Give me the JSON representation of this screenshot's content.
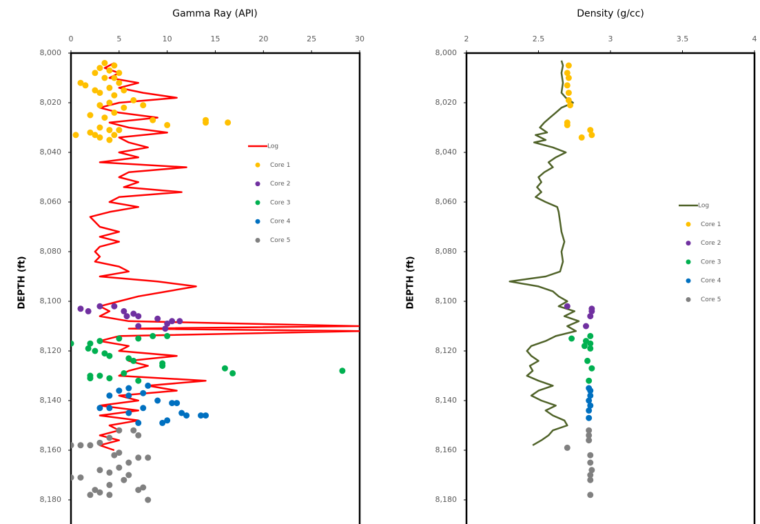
{
  "chart_data": [
    {
      "type": "scatter",
      "title": "Gamma Ray (API)",
      "y_label": "DEPTH (ft)",
      "inverted_y": true,
      "legend": "right",
      "xlim": [
        0,
        30
      ],
      "xticks": [
        0,
        5,
        10,
        15,
        20,
        25,
        30
      ],
      "ylim": [
        8000,
        8200
      ],
      "yticks": [
        {
          "value": 8000,
          "label": "8,000"
        },
        {
          "value": 8020,
          "label": "8,020"
        },
        {
          "value": 8040,
          "label": "8,040"
        },
        {
          "value": 8060,
          "label": "8,060"
        },
        {
          "value": 8080,
          "label": "8,080"
        },
        {
          "value": 8100,
          "label": "8,100"
        },
        {
          "value": 8120,
          "label": "8,120"
        },
        {
          "value": 8140,
          "label": "8,140"
        },
        {
          "value": 8160,
          "label": "8,160"
        },
        {
          "value": 8180,
          "label": "8,180"
        }
      ],
      "series": [
        {
          "name": "Log",
          "color": "#ff0000",
          "mode": "line",
          "x": [
            4.5,
            3.5,
            5,
            4,
            7,
            5,
            7.5,
            11,
            5,
            3,
            5,
            9,
            4,
            6,
            10,
            5,
            6,
            8,
            5,
            7,
            3,
            12,
            6,
            5,
            7,
            5.5,
            11.5,
            5,
            4,
            7,
            4,
            2,
            2.5,
            3,
            5,
            3,
            5,
            3,
            2.5,
            3,
            2.5,
            5,
            6,
            3,
            9,
            13,
            10,
            7,
            5,
            3,
            4,
            3,
            6,
            29.9,
            6,
            30,
            5,
            3,
            6,
            5,
            11,
            6,
            8,
            6,
            5,
            14,
            8,
            11,
            5,
            7,
            3,
            7,
            3,
            7,
            4,
            5,
            3,
            5,
            3,
            4.5
          ],
          "y": [
            8004,
            8006,
            8008,
            8010,
            8012,
            8014,
            8016,
            8018,
            8020,
            8022,
            8024,
            8026,
            8028,
            8030,
            8032,
            8034,
            8036,
            8038,
            8040,
            8042,
            8044,
            8046,
            8048,
            8050,
            8052,
            8054,
            8056,
            8058,
            8060,
            8062,
            8064,
            8066,
            8068,
            8070,
            8072,
            8074,
            8076,
            8078,
            8080,
            8082,
            8084,
            8086,
            8088,
            8090,
            8092,
            8094,
            8096,
            8098,
            8100,
            8102,
            8104,
            8106,
            8108,
            8110,
            8111,
            8112,
            8114,
            8116,
            8118,
            8120,
            8122,
            8124,
            8126,
            8128,
            8130,
            8132,
            8134,
            8136,
            8138,
            8140,
            8142,
            8144,
            8146,
            8148,
            8150,
            8152,
            8154,
            8156,
            8158,
            8160
          ]
        },
        {
          "name": "Core 1",
          "color": "#ffc000",
          "mode": "markers",
          "x": [
            3.5,
            4.5,
            3,
            4,
            2.5,
            5,
            3.5,
            4.5,
            1,
            1.5,
            5,
            4,
            2.5,
            5.5,
            3,
            4.5,
            6.5,
            4,
            7.5,
            3,
            5.5,
            2,
            4.5,
            3.5,
            8.5,
            14,
            16.3,
            14,
            10,
            3,
            4,
            2,
            5,
            0.5,
            3,
            4.5,
            2.5,
            4
          ],
          "y": [
            8004,
            8005,
            8006,
            8007,
            8008,
            8008,
            8010,
            8010,
            8012,
            8013,
            8012,
            8014,
            8015,
            8015,
            8016,
            8017,
            8019,
            8020,
            8021,
            8021,
            8022,
            8025,
            8024,
            8026,
            8027,
            8027,
            8028,
            8028,
            8029,
            8030,
            8031,
            8032,
            8031,
            8033,
            8034,
            8033,
            8033,
            8035
          ]
        },
        {
          "name": "Core 2",
          "color": "#7030a0",
          "mode": "markers",
          "x": [
            1,
            1.8,
            3,
            4.5,
            5.5,
            6.5,
            7,
            5.8,
            9,
            10.5,
            11.3,
            10,
            7,
            9.8
          ],
          "y": [
            8103,
            8104,
            8102,
            8102,
            8104,
            8105,
            8106,
            8106,
            8107,
            8108,
            8108,
            8109,
            8110,
            8111
          ]
        },
        {
          "name": "Core 3",
          "color": "#00b050",
          "mode": "markers",
          "x": [
            0,
            2,
            3,
            5,
            7,
            8.5,
            10,
            1.8,
            2.5,
            3.5,
            4,
            6,
            6.5,
            9.5,
            9.5,
            16,
            16.8,
            28.2,
            5.5,
            2,
            3,
            4,
            7,
            2
          ],
          "y": [
            8117,
            8117,
            8116,
            8115,
            8115,
            8114,
            8114,
            8119,
            8120,
            8121,
            8122,
            8123,
            8124,
            8125,
            8126,
            8127,
            8129,
            8128,
            8129,
            8130,
            8130,
            8131,
            8132,
            8131
          ]
        },
        {
          "name": "Core 4",
          "color": "#0070c0",
          "mode": "markers",
          "x": [
            8,
            6,
            5,
            7.5,
            4,
            6,
            9,
            10.5,
            11,
            4,
            3,
            7.5,
            11.5,
            12,
            13.5,
            14,
            10,
            9.5,
            7,
            6
          ],
          "y": [
            8134,
            8135,
            8136,
            8137,
            8138,
            8138,
            8140,
            8141,
            8141,
            8143,
            8143,
            8143,
            8145,
            8146,
            8146,
            8146,
            8148,
            8149,
            8149,
            8145
          ]
        },
        {
          "name": "Core 5",
          "color": "#808080",
          "mode": "markers",
          "x": [
            5,
            6.5,
            7,
            4,
            3,
            2,
            1,
            0,
            5,
            4.5,
            7,
            8,
            6,
            5,
            3,
            4,
            6,
            1,
            0,
            5.5,
            4,
            7.5,
            7,
            3,
            2,
            4,
            8,
            2.5
          ],
          "y": [
            8152,
            8152,
            8154,
            8155,
            8157,
            8158,
            8158,
            8158,
            8161,
            8162,
            8163,
            8163,
            8165,
            8167,
            8168,
            8169,
            8170,
            8171,
            8171,
            8172,
            8174,
            8175,
            8176,
            8177,
            8178,
            8178,
            8180,
            8176
          ]
        }
      ]
    },
    {
      "type": "scatter",
      "title": "Density (g/cc)",
      "y_label": "DEPTH (ft)",
      "inverted_y": true,
      "legend": "right",
      "xlim": [
        2,
        4
      ],
      "xticks": [
        2,
        2.5,
        3,
        3.5,
        4
      ],
      "ylim": [
        8000,
        8200
      ],
      "yticks": [
        {
          "value": 8000,
          "label": "8,000"
        },
        {
          "value": 8020,
          "label": "8,020"
        },
        {
          "value": 8040,
          "label": "8,040"
        },
        {
          "value": 8060,
          "label": "8,060"
        },
        {
          "value": 8080,
          "label": "8,080"
        },
        {
          "value": 8100,
          "label": "8,100"
        },
        {
          "value": 8120,
          "label": "8,120"
        },
        {
          "value": 8140,
          "label": "8,140"
        },
        {
          "value": 8160,
          "label": "8,160"
        },
        {
          "value": 8180,
          "label": "8,180"
        }
      ],
      "series": [
        {
          "name": "Log",
          "color": "#4f6228",
          "mode": "line",
          "x": [
            2.66,
            2.67,
            2.66,
            2.67,
            2.66,
            2.69,
            2.74,
            2.66,
            2.62,
            2.58,
            2.54,
            2.51,
            2.56,
            2.48,
            2.55,
            2.47,
            2.6,
            2.69,
            2.62,
            2.57,
            2.6,
            2.54,
            2.5,
            2.52,
            2.49,
            2.52,
            2.48,
            2.55,
            2.63,
            2.64,
            2.65,
            2.66,
            2.68,
            2.66,
            2.67,
            2.65,
            2.55,
            2.3,
            2.5,
            2.6,
            2.64,
            2.7,
            2.64,
            2.75,
            2.68,
            2.78,
            2.7,
            2.76,
            2.62,
            2.55,
            2.45,
            2.42,
            2.45,
            2.5,
            2.44,
            2.46,
            2.42,
            2.5,
            2.6,
            2.5,
            2.45,
            2.52,
            2.62,
            2.55,
            2.6,
            2.68,
            2.7,
            2.6,
            2.57,
            2.52,
            2.46
          ],
          "y": [
            8003,
            8005,
            8008,
            8012,
            8016,
            8018,
            8020,
            8022,
            8024,
            8026,
            8028,
            8030,
            8032,
            8033,
            8035,
            8036,
            8038,
            8040,
            8042,
            8044,
            8046,
            8048,
            8050,
            8052,
            8054,
            8056,
            8058,
            8060,
            8062,
            8064,
            8068,
            8072,
            8076,
            8080,
            8084,
            8088,
            8090,
            8092,
            8094,
            8096,
            8098,
            8100,
            8102,
            8104,
            8106,
            8108,
            8110,
            8112,
            8114,
            8116,
            8118,
            8120,
            8122,
            8124,
            8126,
            8128,
            8130,
            8132,
            8134,
            8136,
            8138,
            8140,
            8142,
            8144,
            8146,
            8148,
            8150,
            8152,
            8154,
            8156,
            8158
          ]
        },
        {
          "name": "Core 1",
          "color": "#ffc000",
          "mode": "markers",
          "x": [
            2.71,
            2.7,
            2.71,
            2.7,
            2.71,
            2.71,
            2.72,
            2.7,
            2.7,
            2.86,
            2.87,
            2.8
          ],
          "y": [
            8005,
            8008,
            8010,
            8013,
            8016,
            8019,
            8021,
            8028,
            8029,
            8031,
            8033,
            8034
          ]
        },
        {
          "name": "Core 2",
          "color": "#7030a0",
          "mode": "markers",
          "x": [
            2.7,
            2.87,
            2.87,
            2.86,
            2.83
          ],
          "y": [
            8102,
            8103,
            8104,
            8106,
            8110
          ]
        },
        {
          "name": "Core 3",
          "color": "#00b050",
          "mode": "markers",
          "x": [
            2.86,
            2.73,
            2.83,
            2.86,
            2.82,
            2.86,
            2.84,
            2.87,
            2.85
          ],
          "y": [
            8114,
            8115,
            8116,
            8117,
            8118,
            8119,
            8124,
            8127,
            8132
          ]
        },
        {
          "name": "Core 4",
          "color": "#0070c0",
          "mode": "markers",
          "x": [
            2.85,
            2.86,
            2.86,
            2.85,
            2.86,
            2.85,
            2.85
          ],
          "y": [
            8135,
            8136,
            8138,
            8140,
            8142,
            8144,
            8147
          ]
        },
        {
          "name": "Core 5",
          "color": "#808080",
          "mode": "markers",
          "x": [
            2.85,
            2.85,
            2.85,
            2.7,
            2.86,
            2.86,
            2.87,
            2.86,
            2.86,
            2.86
          ],
          "y": [
            8152,
            8154,
            8156,
            8159,
            8162,
            8165,
            8168,
            8170,
            8172,
            8178
          ]
        }
      ]
    }
  ]
}
